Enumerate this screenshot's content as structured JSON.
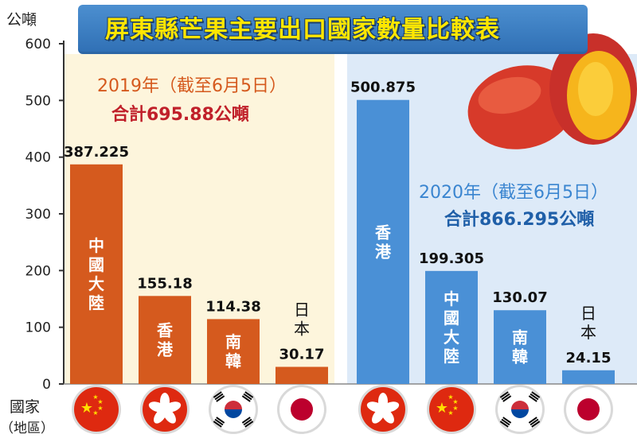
{
  "title": "屏東縣芒果主要出口國家數量比較表",
  "y_unit": "公噸",
  "x_unit_line1": "國家",
  "x_unit_line2": "（地區）",
  "colors": {
    "orange_bar": "#d55a1e",
    "blue_bar": "#4a90d6",
    "bg_2019": "#fdf5dc",
    "bg_2020": "#ddeaf8",
    "title_text": "#ffe600",
    "title_bar": "#3a7fc4",
    "total_2019": "#c0202a",
    "total_2020": "#1f5fa8",
    "year_2019": "#d55a1e",
    "year_2020": "#3a85d0"
  },
  "chart_data": {
    "type": "bar",
    "ylim": [
      0,
      600
    ],
    "yticks": [
      0,
      100,
      200,
      300,
      400,
      500,
      600
    ],
    "groups": [
      {
        "name": "2019年（截至6月5日）",
        "year_label": "2019年（截至6月5日）",
        "total_label": "合計695.88公噸",
        "color": "#d55a1e",
        "categories": [
          "中國大陸",
          "香港",
          "南韓",
          "日本"
        ],
        "values": [
          387.225,
          155.18,
          114.38,
          30.17
        ],
        "value_labels": [
          "387.225",
          "155.18",
          "114.38",
          "30.17"
        ],
        "flags": [
          "china-flag-icon",
          "hong-kong-flag-icon",
          "south-korea-flag-icon",
          "japan-flag-icon"
        ]
      },
      {
        "name": "2020年（截至6月5日）",
        "year_label": "2020年（截至6月5日）",
        "total_label": "合計866.295公噸",
        "color": "#4a90d6",
        "categories": [
          "香港",
          "中國大陸",
          "南韓",
          "日本"
        ],
        "values": [
          500.875,
          199.305,
          130.07,
          24.15
        ],
        "value_labels": [
          "500.875",
          "199.305",
          "130.07",
          "24.15"
        ],
        "flags": [
          "hong-kong-flag-icon",
          "china-flag-icon",
          "south-korea-flag-icon",
          "japan-flag-icon"
        ]
      }
    ]
  }
}
